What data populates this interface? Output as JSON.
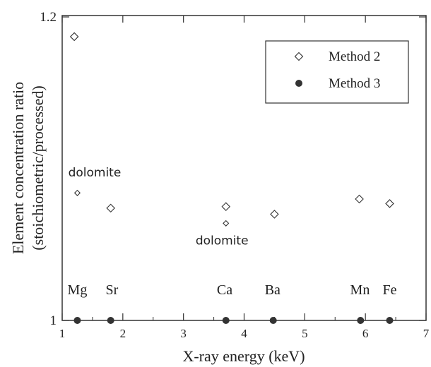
{
  "chart_data": {
    "type": "scatter",
    "xlabel": "X-ray energy (keV)",
    "ylabel": [
      "Element concentration ratio",
      "(stoichiometric/processed)"
    ],
    "xlim": [
      1,
      7
    ],
    "xticks": [
      1,
      2,
      3,
      4,
      5,
      6,
      7
    ],
    "ylim": [
      1,
      1.2
    ],
    "yticks": [
      "1",
      "1.2"
    ],
    "legend": {
      "position": "top-right",
      "entries": [
        {
          "series": "method2",
          "label": "Method 2",
          "marker": "open-diamond"
        },
        {
          "series": "method3",
          "label": "Method 3",
          "marker": "filled-circle"
        }
      ]
    },
    "element_labels": [
      {
        "text": "Mg",
        "x": 1.25
      },
      {
        "text": "Sr",
        "x": 1.82
      },
      {
        "text": "Ca",
        "x": 3.68
      },
      {
        "text": "Ba",
        "x": 4.47
      },
      {
        "text": "Mn",
        "x": 5.91
      },
      {
        "text": "Fe",
        "x": 6.4
      }
    ],
    "series": [
      {
        "id": "method2",
        "name": "Method 2",
        "marker": "open-diamond",
        "points": [
          {
            "x": 1.2,
            "y": 1.187
          },
          {
            "x": 1.8,
            "y": 1.074
          },
          {
            "x": 3.7,
            "y": 1.075
          },
          {
            "x": 4.5,
            "y": 1.07
          },
          {
            "x": 5.9,
            "y": 1.08
          },
          {
            "x": 6.4,
            "y": 1.077
          }
        ]
      },
      {
        "id": "method2-dolomite",
        "name": "",
        "marker": "small-open-diamond",
        "points": [
          {
            "x": 1.25,
            "y": 1.084
          },
          {
            "x": 3.7,
            "y": 1.064
          }
        ]
      },
      {
        "id": "method3",
        "name": "Method 3",
        "marker": "filled-circle",
        "points": [
          {
            "x": 1.25,
            "y": 1.0
          },
          {
            "x": 1.8,
            "y": 1.0
          },
          {
            "x": 3.7,
            "y": 1.0
          },
          {
            "x": 4.48,
            "y": 1.0
          },
          {
            "x": 5.92,
            "y": 1.0
          },
          {
            "x": 6.4,
            "y": 1.0
          }
        ]
      }
    ],
    "annotations": [
      {
        "text": "dolomite",
        "x": 1.1,
        "y": 1.095
      },
      {
        "text": "dolomite",
        "x": 3.2,
        "y": 1.05
      }
    ],
    "grid": false
  }
}
